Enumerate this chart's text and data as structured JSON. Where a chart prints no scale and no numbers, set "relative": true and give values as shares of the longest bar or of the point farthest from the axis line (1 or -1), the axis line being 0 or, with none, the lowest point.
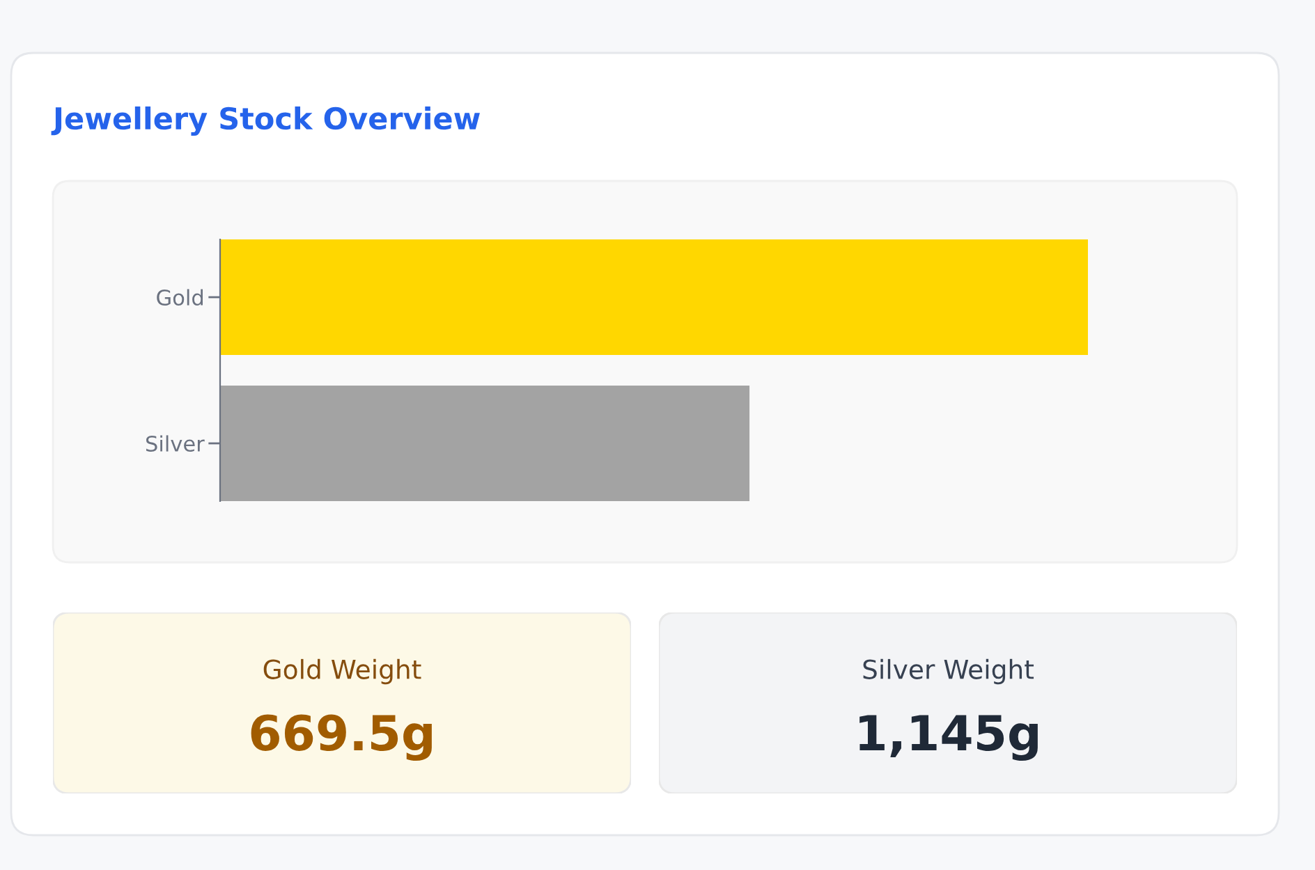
{
  "chart_data": [
    {
      "type": "bar",
      "title": "Jewellery Stock Overview",
      "orientation": "horizontal",
      "relative": true,
      "categories": [
        "Gold",
        "Silver"
      ],
      "values": [
        1,
        0.61
      ],
      "colors": [
        "#ffd700",
        "#a3a3a3"
      ],
      "tick_labels": "y"
    },
    {
      "type": "other",
      "title": "Gold Weight",
      "annotations": [
        "669.5g"
      ],
      "color": "#a15c00"
    },
    {
      "type": "other",
      "title": "Silver Weight",
      "annotations": [
        "1,145g"
      ],
      "color": "#1f2937"
    }
  ]
}
